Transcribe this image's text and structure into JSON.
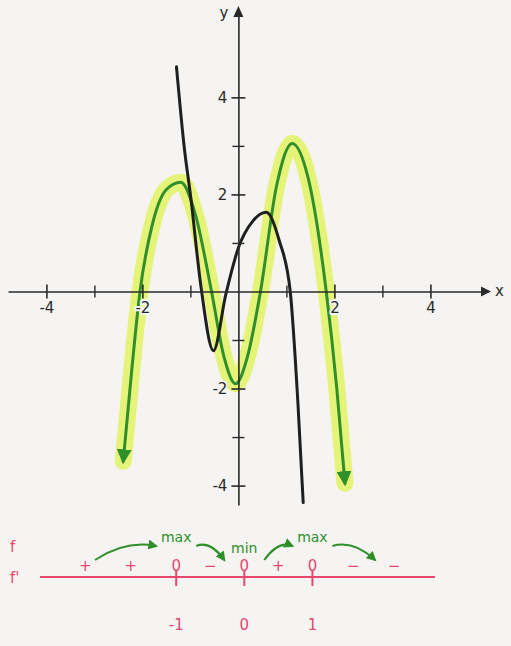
{
  "chart_data": {
    "type": "line",
    "xlabel": "x",
    "ylabel": "y",
    "xlim": [
      -4.8,
      5.2
    ],
    "ylim": [
      -4.4,
      5.8
    ],
    "xticks": [
      -4,
      -2,
      2,
      4
    ],
    "yticks": [
      -4,
      -2,
      2,
      4
    ],
    "minor_xticks": [
      -3,
      -1,
      1,
      3
    ],
    "minor_yticks": [
      -3,
      -1,
      1,
      3
    ],
    "series": [
      {
        "color": "#1f1f1f",
        "line_style": "solid",
        "marker": "none",
        "x": [
          -1.29,
          -1.12,
          -1.0,
          -0.78,
          -0.52,
          -0.26,
          0,
          0.3,
          0.58,
          0.85,
          1.08,
          1.24,
          1.35
        ],
        "values": [
          4.63,
          2.9,
          2.0,
          0.1,
          -1.22,
          -0.05,
          0.9,
          1.45,
          1.63,
          1.05,
          0,
          -2.3,
          -4.35
        ]
      },
      {
        "color": "#2f8f2a",
        "line_style": "solid",
        "marker": "arrow",
        "x": [
          -2.4,
          -2.22,
          -2.05,
          -1.8,
          -1.5,
          -1.2,
          -0.9,
          -0.56,
          -0.3,
          -0.06,
          0.2,
          0.46,
          0.8,
          1.12,
          1.45,
          1.83,
          2.05,
          2.22
        ],
        "values": [
          -3.5,
          -1.6,
          0,
          1.35,
          2.1,
          2.25,
          1.6,
          0,
          -1.35,
          -1.9,
          -1.3,
          0,
          2.2,
          3.05,
          2.35,
          0,
          -2.0,
          -3.95
        ]
      }
    ],
    "annotations": {
      "sign_chart": {
        "row_labels": [
          "f",
          "f'"
        ],
        "xlim": [
          -3,
          2.8
        ],
        "points": [
          -1,
          0,
          1
        ],
        "point_labels": [
          "0",
          "0",
          "0"
        ],
        "intervals": [
          [
            "+",
            "+"
          ],
          [
            "−"
          ],
          [
            "+"
          ],
          [
            "−",
            "−"
          ]
        ],
        "extrema": [
          "max",
          "min",
          "max"
        ],
        "color": "#e5476f",
        "extrema_color": "#2f8f2a"
      }
    }
  }
}
